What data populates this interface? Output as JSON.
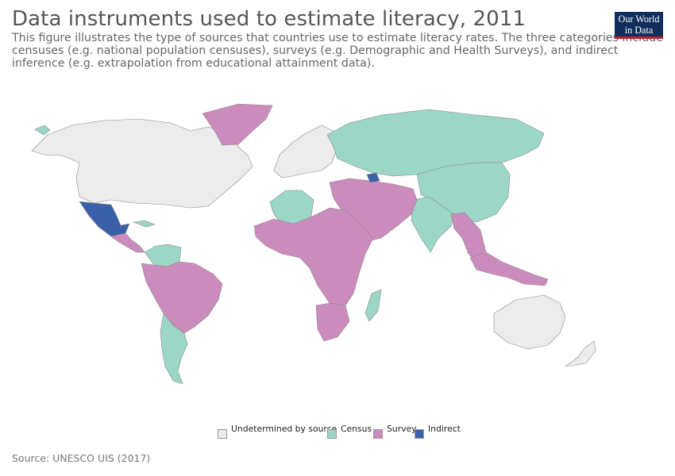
{
  "header": {
    "title": "Data instruments used to estimate literacy, 2011",
    "subtitle": "This figure illustrates the type of sources that countries use to estimate literacy rates. The three categories include censuses (e.g. national population censuses), surveys (e.g. Demographic and Health Surveys), and indirect inference (e.g. extrapolation from educational attainment data)."
  },
  "logo": {
    "line1": "Our World",
    "line2": "in Data"
  },
  "colors": {
    "undetermined": "#ececec",
    "census": "#9bd6c6",
    "survey": "#cc8bbd",
    "indirect": "#3a60a8",
    "border": "#8a8a8a",
    "ocean": "#ffffff"
  },
  "legend": {
    "items": [
      {
        "label": "Undetermined by source",
        "color": "#ececec"
      },
      {
        "label": "Census",
        "color": "#9bd6c6"
      },
      {
        "label": "Survey",
        "color": "#cc8bbd"
      },
      {
        "label": "Indirect",
        "color": "#3a60a8"
      }
    ]
  },
  "regions": [
    {
      "name": "north-america-undetermined",
      "category": "undetermined"
    },
    {
      "name": "greenland",
      "category": "survey"
    },
    {
      "name": "mexico",
      "category": "indirect"
    },
    {
      "name": "central-america",
      "category": "survey"
    },
    {
      "name": "cuba",
      "category": "census"
    },
    {
      "name": "colombia-venezuela",
      "category": "census"
    },
    {
      "name": "south-america-survey",
      "category": "survey"
    },
    {
      "name": "argentina-chile",
      "category": "census"
    },
    {
      "name": "europe-undetermined",
      "category": "undetermined"
    },
    {
      "name": "russia-central-asia",
      "category": "census"
    },
    {
      "name": "china",
      "category": "census"
    },
    {
      "name": "india",
      "category": "census"
    },
    {
      "name": "middle-east-survey",
      "category": "survey"
    },
    {
      "name": "azerbaijan",
      "category": "indirect"
    },
    {
      "name": "north-africa-census",
      "category": "census"
    },
    {
      "name": "africa-survey",
      "category": "survey"
    },
    {
      "name": "southeast-asia-survey",
      "category": "survey"
    },
    {
      "name": "indonesia",
      "category": "survey"
    },
    {
      "name": "australia",
      "category": "undetermined"
    },
    {
      "name": "madagascar",
      "category": "census"
    },
    {
      "name": "southern-africa-survey",
      "category": "survey"
    }
  ],
  "source": "Source: UNESCO UIS (2017)"
}
